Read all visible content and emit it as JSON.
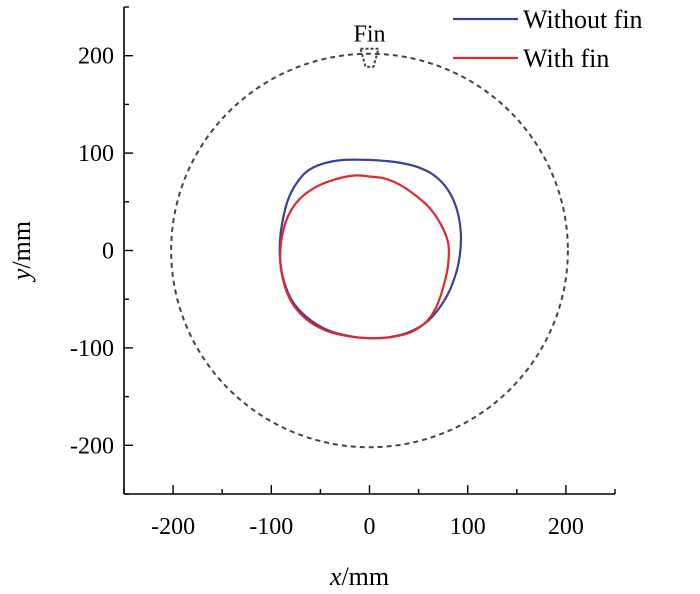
{
  "chart_data": {
    "type": "line",
    "xlabel": "x/mm",
    "ylabel": "y/mm",
    "xlim": [
      -250,
      250
    ],
    "ylim": [
      -250,
      250
    ],
    "xticks": [
      -200,
      -100,
      0,
      100,
      200
    ],
    "yticks": [
      -200,
      -100,
      0,
      100,
      200
    ],
    "legend_position": "top-right",
    "grid": false,
    "series": [
      {
        "name": "Without fin",
        "color": "#3a3f9a",
        "x": [
          0,
          25,
          48,
          66,
          80,
          89,
          93,
          92,
          87,
          77,
          60,
          40,
          20,
          0,
          -20,
          -42,
          -62,
          -78,
          -87,
          -91,
          -91,
          -88,
          -83,
          -75,
          -64,
          -48,
          -26,
          0
        ],
        "y": [
          93,
          91,
          86,
          77,
          62,
          42,
          18,
          -5,
          -27,
          -50,
          -72,
          -84,
          -89,
          -90,
          -88,
          -82,
          -70,
          -53,
          -32,
          -10,
          12,
          33,
          52,
          68,
          81,
          89,
          93,
          93
        ]
      },
      {
        "name": "With fin",
        "color": "#e0272c",
        "x": [
          0,
          15,
          30,
          45,
          60,
          72,
          80,
          80,
          75,
          68,
          58,
          42,
          22,
          0,
          -22,
          -45,
          -65,
          -80,
          -88,
          -91,
          -89,
          -83,
          -72,
          -55,
          -35,
          -15,
          0
        ],
        "y": [
          76,
          74,
          68,
          58,
          45,
          28,
          8,
          -15,
          -38,
          -58,
          -73,
          -84,
          -89,
          -90,
          -88,
          -82,
          -70,
          -52,
          -30,
          -8,
          15,
          35,
          52,
          65,
          73,
          77,
          76
        ]
      },
      {
        "name": "",
        "style": "dashed",
        "color": "#444444",
        "shape": "circle",
        "center": [
          0,
          0
        ],
        "radius": 202
      }
    ],
    "annotations": [
      {
        "text": "Fin",
        "x": 0,
        "y": 225
      }
    ]
  }
}
